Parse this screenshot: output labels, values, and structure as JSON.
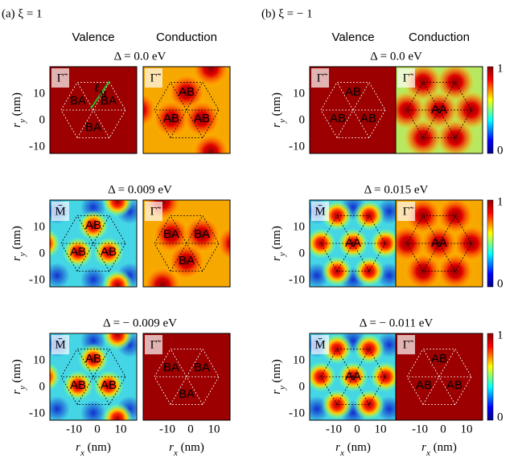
{
  "columns": [
    {
      "title": "(a) ξ = 1",
      "valence": "Valence",
      "conduction": "Conduction",
      "rows": [
        {
          "delta": "Δ = 0.0 eV",
          "panels": [
            {
              "symbol": "Γ̃",
              "map": "dark",
              "layout": "down",
              "regions": [
                "BA",
                "BA",
                "BA"
              ]
            },
            {
              "symbol": "Γ̃",
              "map": "orange",
              "layout": "up",
              "regions": [
                "AB",
                "AB",
                "AB"
              ]
            }
          ]
        },
        {
          "delta": "Δ = 0.009 eV",
          "panels": [
            {
              "symbol": "M̄",
              "map": "cyan",
              "layout": "up",
              "regions": [
                "AB",
                "AB",
                "AB"
              ]
            },
            {
              "symbol": "Γ̃",
              "map": "orange",
              "layout": "down",
              "regions": [
                "BA",
                "BA",
                "BA"
              ]
            }
          ]
        },
        {
          "delta": "Δ = − 0.009 eV",
          "panels": [
            {
              "symbol": "M̄",
              "map": "cyan",
              "layout": "up",
              "regions": [
                "AB",
                "AB",
                "AB"
              ]
            },
            {
              "symbol": "Γ̃",
              "map": "dark",
              "layout": "down",
              "regions": [
                "BA",
                "BA",
                "BA"
              ]
            }
          ]
        }
      ]
    },
    {
      "title": "(b) ξ = − 1",
      "valence": "Valence",
      "conduction": "Conduction",
      "rows": [
        {
          "delta": "Δ = 0.0 eV",
          "panels": [
            {
              "symbol": "Γ̃",
              "map": "dark",
              "layout": "up",
              "regions": [
                "AB",
                "AB",
                "AB"
              ]
            },
            {
              "symbol": "Γ̃",
              "map": "lime",
              "layout": "center",
              "regions": [
                "AA"
              ]
            }
          ]
        },
        {
          "delta": "Δ = 0.015 eV",
          "panels": [
            {
              "symbol": "M̄",
              "map": "cyan",
              "layout": "center",
              "regions": [
                "AA"
              ]
            },
            {
              "symbol": "Γ̃",
              "map": "orange",
              "layout": "center",
              "regions": [
                "AA"
              ]
            }
          ]
        },
        {
          "delta": "Δ = − 0.011 eV",
          "panels": [
            {
              "symbol": "M̄",
              "map": "cyan",
              "layout": "center",
              "regions": [
                "AA"
              ]
            },
            {
              "symbol": "Γ̃",
              "map": "dark",
              "layout": "up",
              "regions": [
                "AB",
                "AB",
                "AB"
              ]
            }
          ]
        }
      ]
    }
  ],
  "axes": {
    "y_label": {
      "symbol": "r",
      "sub": "y",
      "unit": " (nm)"
    },
    "x_label": {
      "symbol": "r",
      "sub": "x",
      "unit": " (nm)"
    },
    "y_ticks": [
      "10",
      "0",
      "-10"
    ],
    "x_ticks": [
      "-10",
      "0",
      "10"
    ]
  },
  "colorbar_ticks": [
    "1",
    "0"
  ],
  "annotation": {
    "symbol": "ℓ",
    "sub": "M"
  }
}
